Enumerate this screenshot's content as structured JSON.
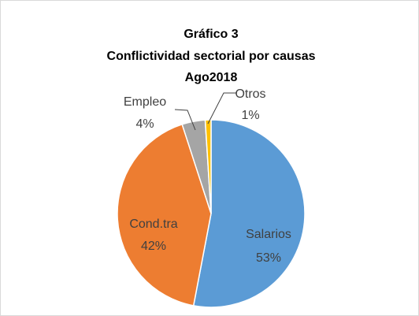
{
  "chart_data": {
    "type": "pie",
    "title": [
      "Gráfico 3",
      "Conflictividad sectorial por causas",
      "Ago2018"
    ],
    "categories": [
      "Salarios",
      "Cond.tra",
      "Empleo",
      "Otros"
    ],
    "values": [
      53,
      42,
      4,
      1
    ],
    "value_labels": [
      "53%",
      "42%",
      "4%",
      "1%"
    ],
    "colors": [
      "#5b9bd5",
      "#ed7d31",
      "#a5a5a5",
      "#ffc000"
    ]
  }
}
